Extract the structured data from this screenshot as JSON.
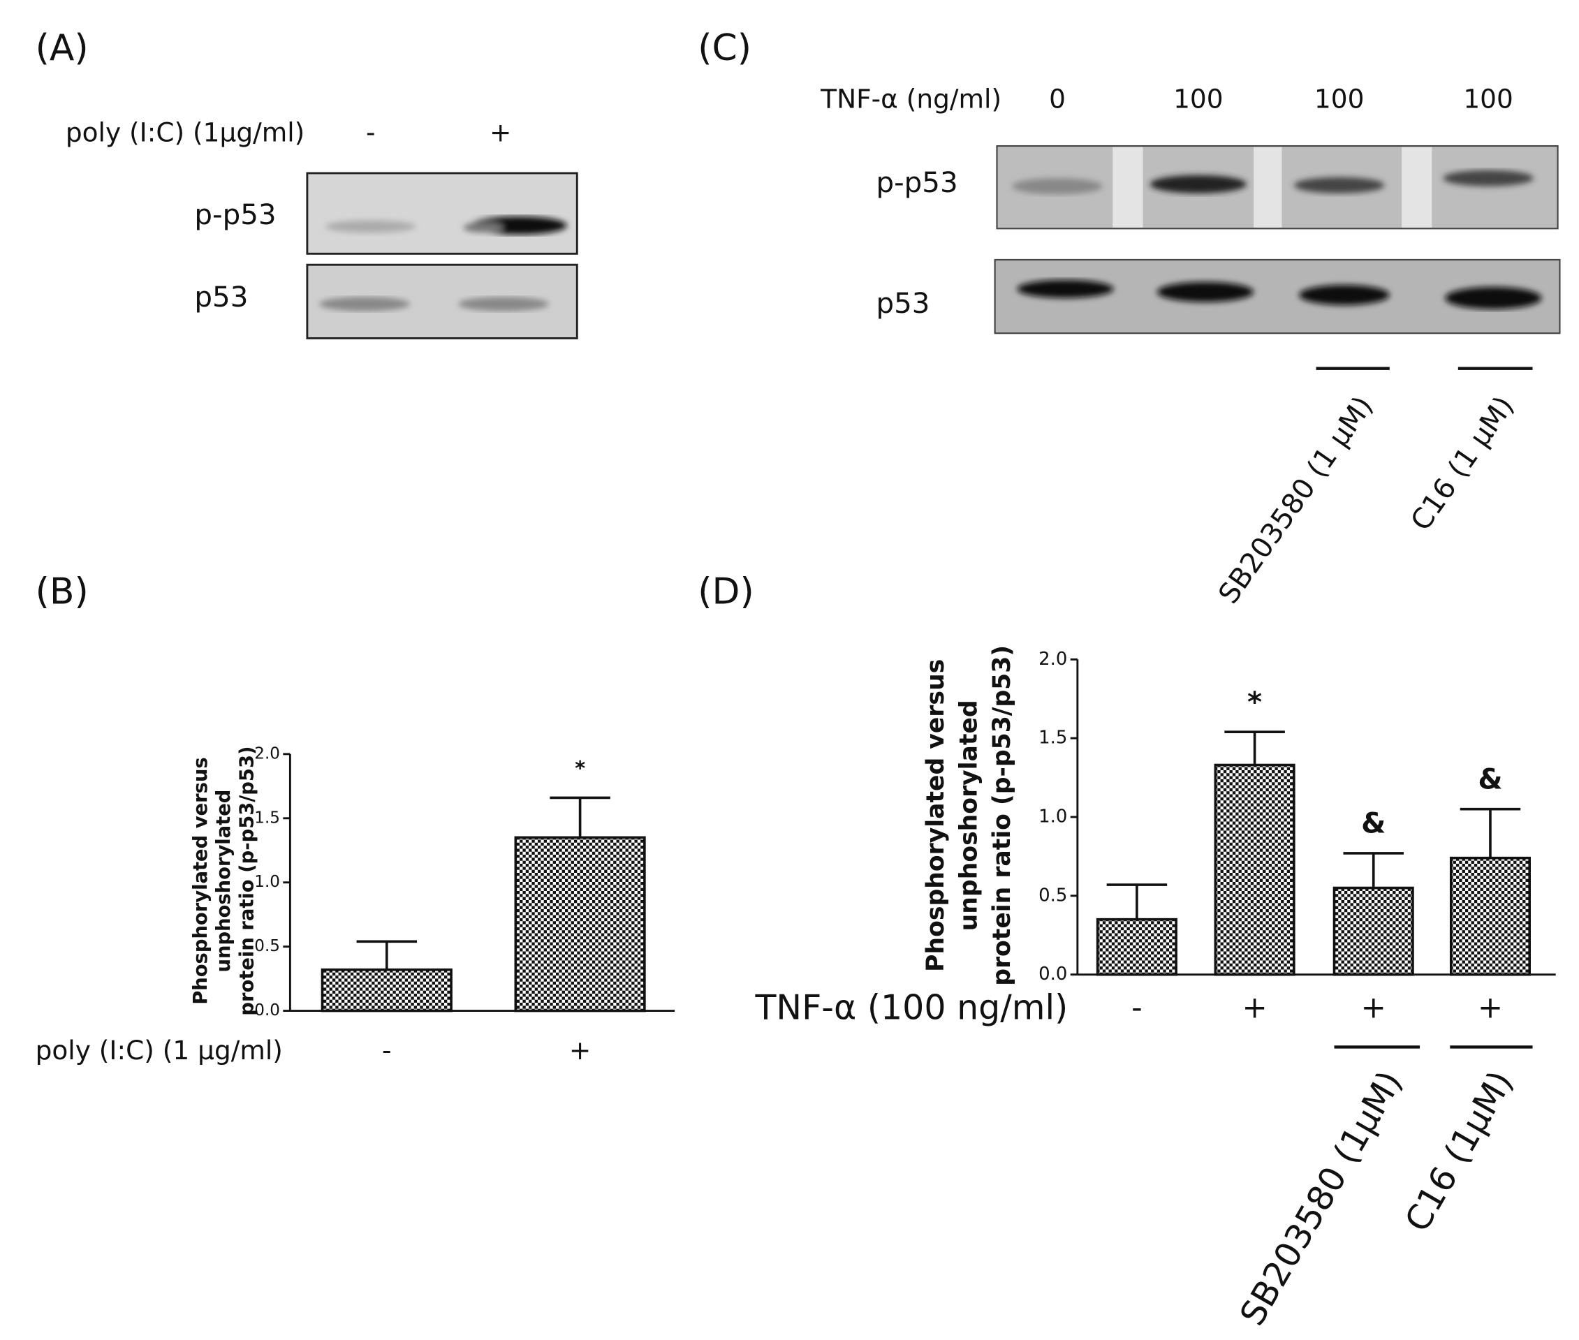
{
  "blot_a": {
    "label": "(A)",
    "treatment": "poly (I:C) (1μg/ml)",
    "conditions": [
      "-",
      "+"
    ],
    "bands": [
      "p-p53",
      "p53"
    ]
  },
  "blot_c": {
    "label": "(C)",
    "treatment": "TNF-α (ng/ml)",
    "conditions": [
      0,
      100,
      100,
      100
    ],
    "bands": [
      "p-p53",
      "p53"
    ],
    "inhibitors": [
      "SB203580 (1 μM)",
      "C16 (1 μM)"
    ]
  },
  "chart_data": [
    {
      "type": "bar",
      "label": "(B)",
      "ylabel": [
        "Phosphorylated versus",
        "unphoshorylated",
        "protein ratio (p-p53/p53)"
      ],
      "treatment": "poly (I:C) (1 μg/ml)",
      "categories": [
        "-",
        "+"
      ],
      "values": [
        0.32,
        1.35
      ],
      "errors": [
        0.22,
        0.31
      ],
      "value_annotations": [
        null,
        "*"
      ],
      "ylim": [
        0,
        2
      ],
      "yticks": [
        {
          "value": 0,
          "label": "0.0"
        },
        {
          "value": 0.5,
          "label": "0.5"
        },
        {
          "value": 1,
          "label": "1.0"
        },
        {
          "value": 1.5,
          "label": "1.5"
        },
        {
          "value": 2,
          "label": "2.0"
        }
      ]
    },
    {
      "type": "bar",
      "label": "(D)",
      "ylabel": [
        "Phosphorylated versus",
        "unphoshorylated",
        "protein ratio (p-p53/p53)"
      ],
      "treatment": "TNF-α (100 ng/ml)",
      "categories": [
        "-",
        "+",
        "+",
        "+"
      ],
      "values": [
        0.35,
        1.33,
        0.55,
        0.74
      ],
      "errors": [
        0.22,
        0.21,
        0.22,
        0.31
      ],
      "value_annotations": [
        null,
        "*",
        "&",
        "&"
      ],
      "inhibitors": [
        "SB203580 (1μM)",
        "C16 (1μM)"
      ],
      "ylim": [
        0,
        2
      ],
      "yticks": [
        {
          "value": 0,
          "label": "0.0"
        },
        {
          "value": 0.5,
          "label": "0.5"
        },
        {
          "value": 1,
          "label": "1.0"
        },
        {
          "value": 1.5,
          "label": "1.5"
        },
        {
          "value": 2,
          "label": "2.0"
        }
      ]
    }
  ]
}
